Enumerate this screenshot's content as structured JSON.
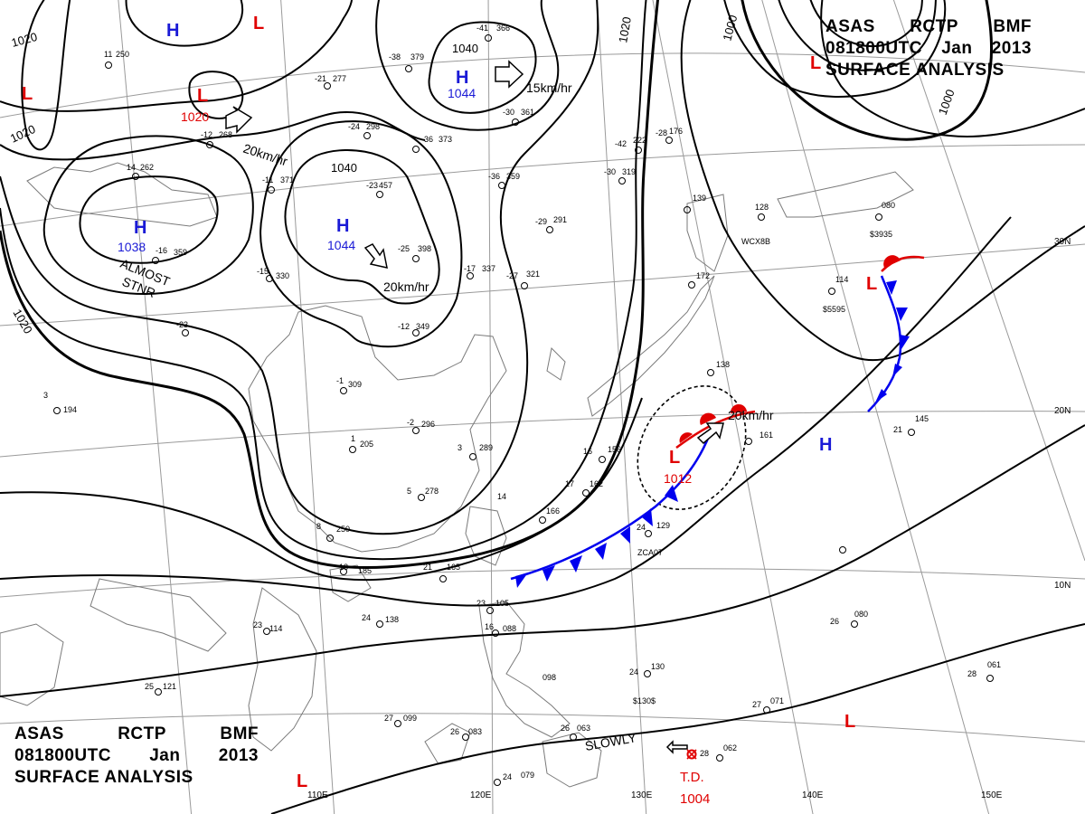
{
  "title_blocks": [
    {
      "line1": [
        "ASAS",
        "RCTP",
        "BMF"
      ],
      "line2": [
        "081800UTC",
        "Jan",
        "2013"
      ],
      "line3": "SURFACE ANALYSIS"
    },
    {
      "line1": [
        "ASAS",
        "RCTP",
        "BMF"
      ],
      "line2": [
        "081800UTC",
        "Jan",
        "2013"
      ],
      "line3": "SURFACE ANALYSIS"
    }
  ],
  "colors": {
    "high": "#1a1ad6",
    "low": "#e00000",
    "cold_front": "#0000ee",
    "warm_front": "#e00000",
    "isobar": "#000000",
    "grid": "#9a9a9a"
  },
  "pressure_centers": {
    "highs": [
      {
        "symbol": "H",
        "value": "1044"
      },
      {
        "symbol": "H",
        "value": "1044"
      },
      {
        "symbol": "H",
        "value": "1038"
      },
      {
        "symbol": "H",
        "value": ""
      },
      {
        "symbol": "H",
        "value": ""
      }
    ],
    "lows": [
      {
        "symbol": "L",
        "value": "1020"
      },
      {
        "symbol": "L",
        "value": "1012"
      },
      {
        "symbol": "L",
        "value": ""
      },
      {
        "symbol": "L",
        "value": ""
      },
      {
        "symbol": "L",
        "value": ""
      },
      {
        "symbol": "L",
        "value": ""
      },
      {
        "symbol": "L",
        "value": ""
      },
      {
        "symbol": "L",
        "value": ""
      }
    ],
    "tropical_depression": {
      "label": "T.D.",
      "value": "1004"
    }
  },
  "motion_labels": [
    "15km/hr",
    "20km/hr",
    "20km/hr",
    "20km/hr",
    "ALMOST",
    "STNR",
    "SLOWLY"
  ],
  "isobar_labels": [
    "1040",
    "1040",
    "1020",
    "1020",
    "1020",
    "1020",
    "1000",
    "1000"
  ],
  "latitude_labels": [
    "30N",
    "20N",
    "10N"
  ],
  "longitude_labels": [
    "110E",
    "120E",
    "130E",
    "140E",
    "150E"
  ],
  "stations": [
    {
      "t": "-41",
      "p": "366"
    },
    {
      "t": "-38",
      "p": "379"
    },
    {
      "t": "11",
      "p": "250"
    },
    {
      "t": "-21",
      "p": "277"
    },
    {
      "t": "-24",
      "p": "298"
    },
    {
      "t": "-36",
      "p": "373"
    },
    {
      "t": "-30",
      "p": "361"
    },
    {
      "t": "-12",
      "p": "268"
    },
    {
      "t": "14",
      "p": "262"
    },
    {
      "t": "-11",
      "p": "371"
    },
    {
      "t": "-23",
      "p": "457"
    },
    {
      "t": "-36",
      "p": "359"
    },
    {
      "t": "-42",
      "p": "222"
    },
    {
      "t": "-28",
      "p": "176"
    },
    {
      "t": "-30",
      "p": "319"
    },
    {
      "t": "-29",
      "p": "291"
    },
    {
      "t": "-16",
      "p": "359"
    },
    {
      "t": "-25",
      "p": "398"
    },
    {
      "t": "-15",
      "p": "330"
    },
    {
      "t": "-17",
      "p": "337"
    },
    {
      "t": "-27",
      "p": "321"
    },
    {
      "t": "-12",
      "p": "349"
    },
    {
      "t": "-1",
      "p": "309"
    },
    {
      "t": "-2",
      "p": "296"
    },
    {
      "t": "3",
      "p": "289"
    },
    {
      "t": "1",
      "p": "205"
    },
    {
      "t": "5",
      "p": "278"
    },
    {
      "t": "8",
      "p": "250"
    },
    {
      "t": "14",
      "p": "166"
    },
    {
      "t": "17",
      "p": "162"
    },
    {
      "t": "16",
      "p": "156"
    },
    {
      "t": "139",
      "p": ""
    },
    {
      "t": "128",
      "p": ""
    },
    {
      "t": "080",
      "p": ""
    },
    {
      "t": "114",
      "p": ""
    },
    {
      "t": "172",
      "p": ""
    },
    {
      "t": "138",
      "p": ""
    },
    {
      "t": "161",
      "p": ""
    },
    {
      "t": "21",
      "p": "145"
    },
    {
      "t": "24",
      "p": "129"
    },
    {
      "t": "21",
      "p": "165"
    },
    {
      "t": "18",
      "p": "185"
    },
    {
      "t": "23",
      "p": "114"
    },
    {
      "t": "24",
      "p": "138"
    },
    {
      "t": "23",
      "p": "105"
    },
    {
      "t": "16",
      "p": "088"
    },
    {
      "t": "25",
      "p": "121"
    },
    {
      "t": "27",
      "p": "099"
    },
    {
      "t": "26",
      "p": "083"
    },
    {
      "t": "24",
      "p": "079"
    },
    {
      "t": "26",
      "p": "063"
    },
    {
      "t": "24",
      "p": "130"
    },
    {
      "t": "26",
      "p": "080"
    },
    {
      "t": "28",
      "p": "061"
    },
    {
      "t": "28",
      "p": "062"
    },
    {
      "t": "27",
      "p": "071"
    },
    {
      "t": "3",
      "p": "194"
    },
    {
      "t": "-23",
      "p": ""
    },
    {
      "t": "098",
      "p": ""
    }
  ],
  "ship_callsigns": [
    "WCX8B",
    "ZCA07",
    "$3935",
    "$5595",
    "$130$"
  ]
}
